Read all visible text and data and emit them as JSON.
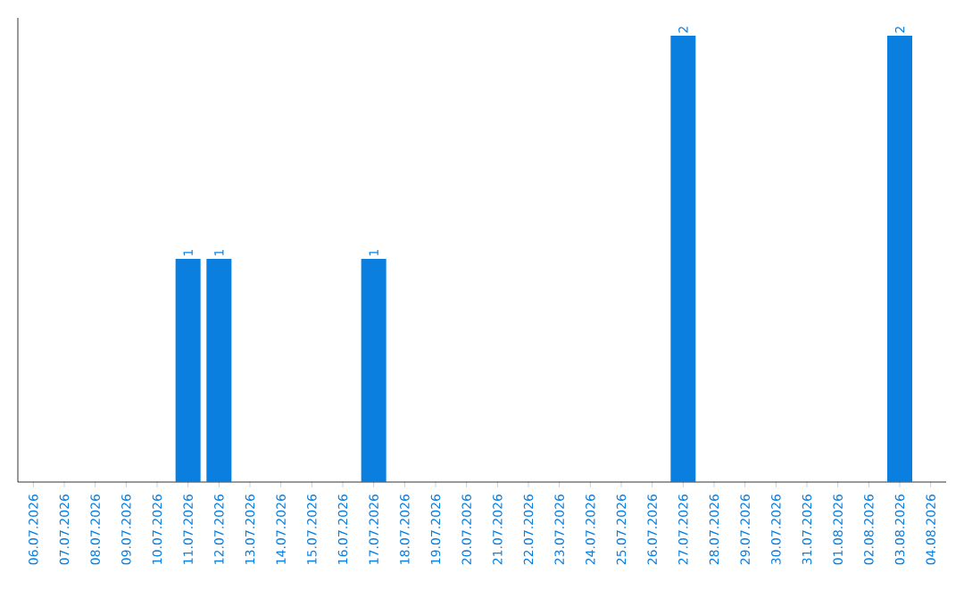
{
  "chart_data": {
    "type": "bar",
    "categories": [
      "06.07.2026",
      "07.07.2026",
      "08.07.2026",
      "09.07.2026",
      "10.07.2026",
      "11.07.2026",
      "12.07.2026",
      "13.07.2026",
      "14.07.2026",
      "15.07.2026",
      "16.07.2026",
      "17.07.2026",
      "18.07.2026",
      "19.07.2026",
      "20.07.2026",
      "21.07.2026",
      "22.07.2026",
      "23.07.2026",
      "24.07.2026",
      "25.07.2026",
      "26.07.2026",
      "27.07.2026",
      "28.07.2026",
      "29.07.2026",
      "30.07.2026",
      "31.07.2026",
      "01.08.2026",
      "02.08.2026",
      "03.08.2026",
      "04.08.2026"
    ],
    "values": [
      0,
      0,
      0,
      0,
      0,
      1,
      1,
      0,
      0,
      0,
      0,
      1,
      0,
      0,
      0,
      0,
      0,
      0,
      0,
      0,
      0,
      2,
      0,
      0,
      0,
      0,
      0,
      0,
      2,
      0
    ],
    "value_labels": [
      null,
      null,
      null,
      null,
      null,
      "1",
      "1",
      null,
      null,
      null,
      null,
      "1",
      null,
      null,
      null,
      null,
      null,
      null,
      null,
      null,
      null,
      "2",
      null,
      null,
      null,
      null,
      null,
      null,
      "2",
      null
    ],
    "color": "#0a7fe0",
    "tick_labels": "x"
  }
}
